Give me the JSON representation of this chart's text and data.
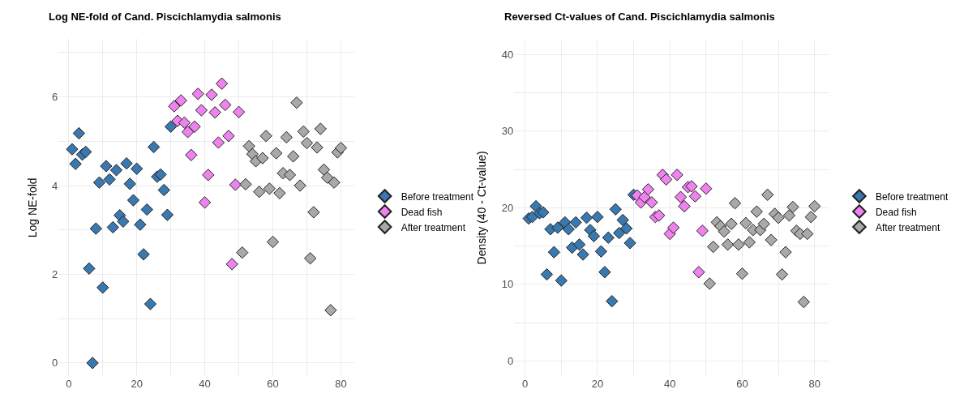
{
  "chart_data": [
    {
      "type": "scatter",
      "title": "Log NE-fold of Cand. Piscichlamydia salmonis",
      "ylabel": "Log NE-fold",
      "marker": "diamond",
      "grid": true,
      "legend": "right",
      "xlim": [
        -3,
        84
      ],
      "xticks": [
        0,
        {
          "value": 10,
          "label": null
        },
        20,
        {
          "value": 30,
          "label": null
        },
        40,
        {
          "value": 50,
          "label": null
        },
        60,
        {
          "value": 70,
          "label": null
        },
        80
      ],
      "ylim": [
        -0.3,
        7.3
      ],
      "yticks": [
        0,
        {
          "value": 1,
          "label": null
        },
        2,
        {
          "value": 3,
          "label": null
        },
        4,
        {
          "value": 5,
          "label": null
        },
        6,
        {
          "value": 7,
          "label": null
        }
      ],
      "series": [
        {
          "name": "Before treatment",
          "color": "#3a78b0",
          "x": [
            1,
            2,
            3,
            4,
            5,
            6,
            7,
            8,
            9,
            10,
            11,
            12,
            13,
            14,
            15,
            16,
            17,
            18,
            19,
            20,
            21,
            22,
            23,
            24,
            25,
            26,
            27,
            28,
            29,
            30
          ],
          "values": [
            4.82,
            4.49,
            5.18,
            4.7,
            4.76,
            2.13,
            0,
            3.03,
            4.07,
            1.7,
            4.44,
            4.14,
            3.06,
            4.35,
            3.33,
            3.19,
            4.5,
            4.04,
            3.67,
            4.38,
            3.12,
            2.45,
            3.46,
            1.33,
            4.87,
            4.2,
            4.25,
            3.9,
            3.34,
            5.33
          ]
        },
        {
          "name": "Dead fish",
          "color": "#ee82ee",
          "x": [
            31,
            32,
            33,
            34,
            35,
            36,
            37,
            38,
            39,
            40,
            41,
            42,
            43,
            44,
            45,
            46,
            47,
            48,
            49,
            50
          ],
          "values": [
            5.79,
            5.46,
            5.92,
            5.42,
            5.21,
            4.69,
            5.33,
            6.07,
            5.7,
            3.62,
            4.24,
            6.05,
            5.65,
            4.97,
            6.3,
            5.82,
            5.12,
            2.23,
            4.02,
            5.66
          ]
        },
        {
          "name": "After treatment",
          "color": "#a9a9a9",
          "x": [
            51,
            52,
            53,
            54,
            55,
            56,
            57,
            58,
            59,
            60,
            61,
            62,
            63,
            64,
            65,
            66,
            67,
            68,
            69,
            70,
            71,
            72,
            73,
            74,
            75,
            76,
            77,
            78,
            79,
            80
          ],
          "values": [
            2.49,
            4.03,
            4.89,
            4.71,
            4.55,
            3.86,
            4.62,
            5.12,
            3.93,
            2.73,
            4.73,
            3.83,
            4.28,
            5.09,
            4.24,
            4.66,
            5.87,
            4.0,
            5.22,
            4.96,
            2.36,
            3.4,
            4.86,
            5.28,
            4.36,
            4.18,
            1.19,
            4.07,
            4.75,
            4.85
          ]
        }
      ]
    },
    {
      "type": "scatter",
      "title": "Reversed Ct-values of Cand. Piscichlamydia salmonis",
      "ylabel": "Density (40 - Ct-value)",
      "marker": "diamond",
      "grid": true,
      "legend": "right",
      "xlim": [
        -3,
        84
      ],
      "xticks": [
        0,
        {
          "value": 10,
          "label": null
        },
        20,
        {
          "value": 30,
          "label": null
        },
        40,
        {
          "value": 50,
          "label": null
        },
        60,
        {
          "value": 70,
          "label": null
        },
        80
      ],
      "ylim": [
        -2,
        42
      ],
      "yticks": [
        0,
        {
          "value": 5,
          "label": null
        },
        10,
        {
          "value": 15,
          "label": null
        },
        20,
        {
          "value": 25,
          "label": null
        },
        30,
        {
          "value": 35,
          "label": null
        },
        40
      ],
      "series": [
        {
          "name": "Before treatment",
          "color": "#3a78b0",
          "x": [
            1,
            2,
            3,
            4,
            5,
            6,
            7,
            8,
            9,
            10,
            11,
            12,
            13,
            14,
            15,
            16,
            17,
            18,
            19,
            20,
            21,
            22,
            23,
            24,
            25,
            26,
            27,
            28,
            29,
            30
          ],
          "values": [
            18.6,
            18.8,
            20.2,
            19.3,
            19.4,
            11.3,
            17.2,
            14.2,
            17.4,
            10.5,
            18.1,
            17.2,
            14.8,
            18.1,
            15.2,
            13.9,
            18.7,
            17.1,
            16.3,
            18.8,
            14.3,
            11.6,
            16.1,
            7.8,
            19.8,
            16.7,
            18.4,
            17.3,
            15.4,
            21.7
          ]
        },
        {
          "name": "Dead fish",
          "color": "#ee82ee",
          "x": [
            31,
            32,
            33,
            34,
            35,
            36,
            37,
            38,
            39,
            40,
            41,
            42,
            43,
            44,
            45,
            46,
            47,
            48,
            49,
            50
          ],
          "values": [
            21.6,
            20.7,
            21.4,
            22.4,
            20.7,
            18.8,
            19.0,
            24.3,
            23.7,
            16.6,
            17.4,
            24.3,
            21.4,
            20.2,
            22.7,
            22.8,
            21.5,
            11.6,
            17.0,
            22.5
          ]
        },
        {
          "name": "After treatment",
          "color": "#a9a9a9",
          "x": [
            51,
            52,
            53,
            54,
            55,
            56,
            57,
            58,
            59,
            60,
            61,
            62,
            63,
            64,
            65,
            66,
            67,
            68,
            69,
            70,
            71,
            72,
            73,
            74,
            75,
            76,
            77,
            78,
            79,
            80
          ],
          "values": [
            10.1,
            14.9,
            18.1,
            17.6,
            16.9,
            15.2,
            17.9,
            20.6,
            15.2,
            11.4,
            18.0,
            15.5,
            17.1,
            19.5,
            17.1,
            17.9,
            21.7,
            15.8,
            19.2,
            18.7,
            11.3,
            14.2,
            19.0,
            20.1,
            17.0,
            16.6,
            7.7,
            16.6,
            18.8,
            20.2
          ]
        }
      ]
    }
  ]
}
